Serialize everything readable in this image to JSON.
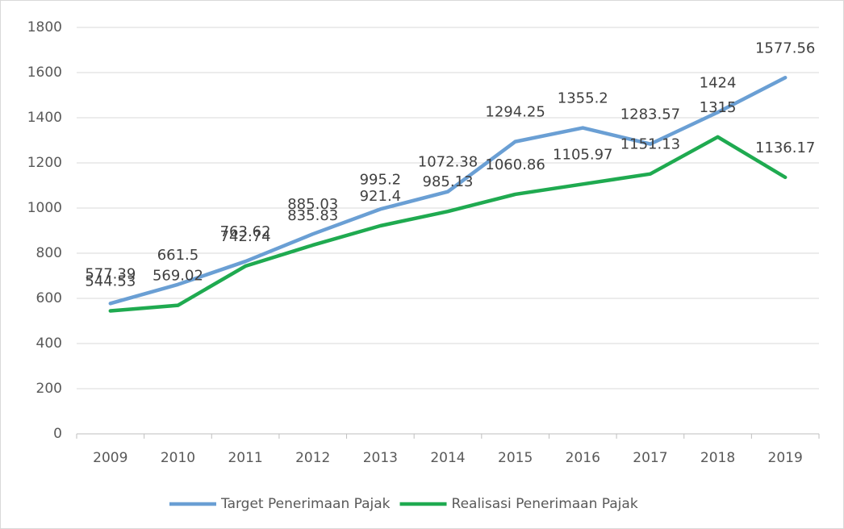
{
  "chart_data": {
    "type": "line",
    "categories": [
      "2009",
      "2010",
      "2011",
      "2012",
      "2013",
      "2014",
      "2015",
      "2016",
      "2017",
      "2018",
      "2019"
    ],
    "series": [
      {
        "name": "Target Penerimaan Pajak",
        "color": "#6a9fd4",
        "values": [
          577.39,
          661.5,
          763.62,
          885.03,
          995.2,
          1072.38,
          1294.25,
          1355.2,
          1283.57,
          1424,
          1577.56
        ]
      },
      {
        "name": "Realisasi Penerimaan Pajak",
        "color": "#1faa50",
        "values": [
          544.53,
          569.02,
          742.74,
          835.83,
          921.4,
          985.13,
          1060.86,
          1105.97,
          1151.13,
          1315,
          1136.17
        ]
      }
    ],
    "ylim": [
      0,
      1800
    ],
    "yticks": [
      0,
      200,
      400,
      600,
      800,
      1000,
      1200,
      1400,
      1600,
      1800
    ],
    "grid": true,
    "legend": "bottom"
  }
}
